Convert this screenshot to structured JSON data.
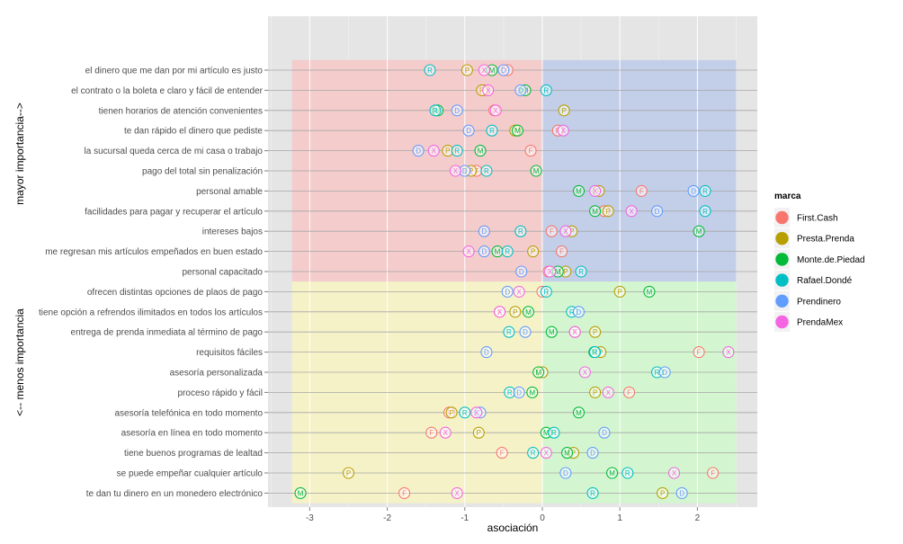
{
  "chart_data": {
    "type": "scatter",
    "xlabel": "asociación",
    "ylabel_top": "mayor importancia-->",
    "ylabel_bottom": "<-- menos importancia",
    "xlim": [
      -3.35,
      2.8
    ],
    "xticks": [
      -3,
      -2,
      -1,
      0,
      1,
      2
    ],
    "categories": [
      "el dinero que me dan por mi artículo es justo",
      "el contrato o la boleta e claro y fácil de entender",
      "tienen horarios de atención convenientes",
      "te dan rápido el dinero que pediste",
      "la sucursal queda cerca de mi casa o trabajo",
      "pago del total sin penalización",
      "personal amable",
      "facilidades para pagar y recuperar el artículo",
      "intereses bajos",
      "me regresan mis artículos empeñados en buen estado",
      "personal capacitado",
      "ofrecen distintas opciones de plaos de pago",
      "tiene opción a refrendos ilimitados en todos los artículos",
      "entrega de prenda inmediata al término de pago",
      "requisitos fáciles",
      "asesoría personalizada",
      "proceso rápido y fácil",
      "asesoría telefónica en todo momento",
      "asesoría en línea en todo momento",
      "tiene buenos programas de lealtad",
      "se puede empeñar cualquier artículo",
      "te dan tu dinero en un monedero electrónico"
    ],
    "quadrants": {
      "x_min": -3.23,
      "x_mid": 0,
      "x_max": 2.5,
      "split_after_category": 10,
      "colors": {
        "top_left": "#f4cccc",
        "top_right": "#c3cee8",
        "bottom_left": "#f5f2c8",
        "bottom_right": "#d3f5cf"
      }
    },
    "legend": {
      "title": "marca",
      "position": "right",
      "entries": [
        {
          "name": "First.Cash",
          "letter": "F",
          "color": "#f8766d"
        },
        {
          "name": "Presta.Prenda",
          "letter": "P",
          "color": "#b79f00"
        },
        {
          "name": "Monte.de.Piedad",
          "letter": "M",
          "color": "#00ba38"
        },
        {
          "name": "Rafael.Dondé",
          "letter": "R",
          "color": "#00bfc4"
        },
        {
          "name": "Prendinero",
          "letter": "D",
          "color": "#619cff"
        },
        {
          "name": "PrendaMex",
          "letter": "X",
          "color": "#f564e3"
        }
      ]
    },
    "series": [
      {
        "name": "First.Cash",
        "values": [
          -0.45,
          -0.75,
          -0.62,
          0.2,
          -0.15,
          -0.85,
          1.28,
          0.8,
          0.12,
          0.25,
          0.08,
          0.0,
          -0.55,
          0.42,
          2.02,
          0.0,
          1.12,
          -1.2,
          -1.43,
          -0.52,
          2.2,
          -1.78
        ]
      },
      {
        "name": "Presta.Prenda",
        "values": [
          -0.97,
          -0.78,
          0.28,
          -0.35,
          -1.22,
          -0.92,
          0.73,
          0.85,
          0.38,
          -0.12,
          0.3,
          1.0,
          -0.35,
          0.68,
          0.75,
          0.0,
          0.68,
          -1.17,
          -0.82,
          0.4,
          -2.5,
          1.55
        ]
      },
      {
        "name": "Monte.de.Piedad",
        "values": [
          -0.65,
          -0.22,
          -1.35,
          -0.32,
          -0.8,
          -0.08,
          0.47,
          0.68,
          2.02,
          -0.58,
          0.2,
          1.38,
          -0.18,
          0.12,
          0.67,
          -0.05,
          -0.13,
          0.47,
          0.05,
          0.32,
          0.9,
          -3.12
        ]
      },
      {
        "name": "Rafael.Dondé",
        "values": [
          -1.45,
          0.05,
          -1.38,
          -0.65,
          -1.1,
          -0.72,
          2.1,
          2.1,
          -0.28,
          -0.45,
          0.5,
          0.05,
          0.38,
          -0.43,
          0.68,
          1.48,
          -0.42,
          -1.0,
          0.15,
          -0.12,
          1.1,
          0.65
        ]
      },
      {
        "name": "Prendinero",
        "values": [
          -0.5,
          -0.28,
          -1.1,
          -0.95,
          -1.6,
          -1.0,
          1.95,
          1.48,
          -0.75,
          -0.75,
          -0.27,
          -0.45,
          0.47,
          -0.22,
          -0.72,
          1.58,
          -0.3,
          -0.8,
          0.8,
          0.65,
          0.3,
          1.8
        ]
      },
      {
        "name": "PrendaMex",
        "values": [
          -0.75,
          -0.7,
          -0.6,
          0.27,
          -1.4,
          -1.12,
          0.68,
          1.15,
          0.3,
          -0.95,
          0.1,
          -0.3,
          -0.55,
          0.42,
          2.4,
          0.55,
          0.85,
          -0.85,
          -1.25,
          0.05,
          1.7,
          -1.1
        ]
      }
    ]
  }
}
